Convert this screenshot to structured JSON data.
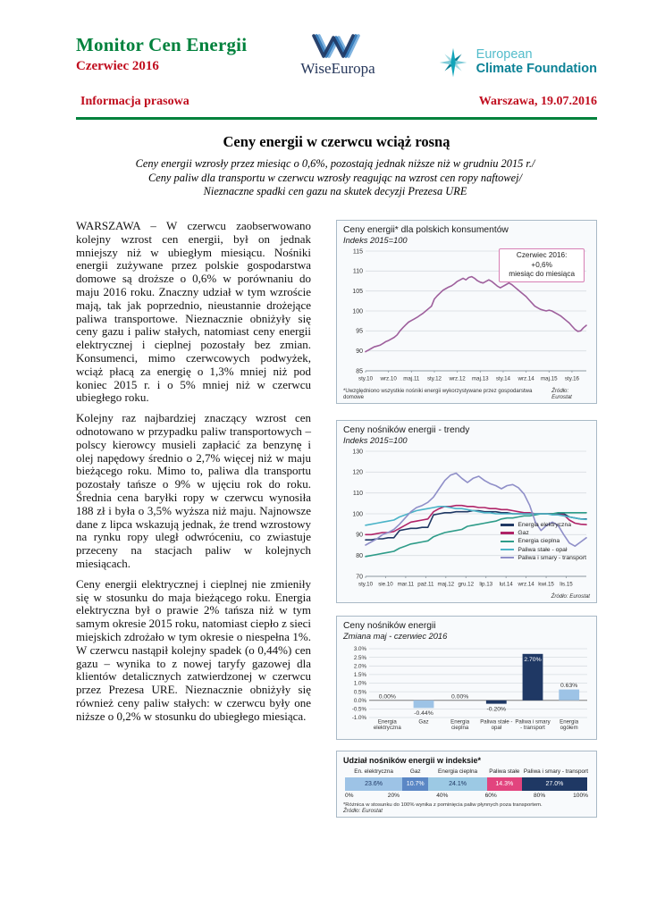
{
  "colors": {
    "brand_green": "#00813C",
    "brand_red": "#C00D1E",
    "navy": "#1F3864",
    "light_blue": "#9DC3E6",
    "pink_callout_border": "#D77FB4",
    "ecf_teal_light": "#53BCCB",
    "ecf_teal_dark": "#0C8296"
  },
  "header": {
    "title": "Monitor Cen Energii",
    "subtitle": "Czerwiec 2016",
    "wise_logo_text": "WiseEuropa",
    "ecf_logo_line1": "European",
    "ecf_logo_line2": "Climate Foundation",
    "press_label": "Informacja prasowa",
    "dateline": "Warszawa, 19.07.2016"
  },
  "article": {
    "title": "Ceny energii w czerwcu wciąż rosną",
    "lead_lines": [
      "Ceny energii wzrosły przez miesiąc o 0,6%, pozostają jednak niższe niż w grudniu 2015 r./",
      "Ceny paliw dla transportu w czerwcu wzrosły reagując na wzrost cen ropy naftowej/",
      "Nieznaczne spadki cen gazu na skutek decyzji Prezesa URE"
    ],
    "paragraphs": [
      "WARSZAWA – W czerwcu zaobserwowano kolejny wzrost cen energii, był on jednak mniejszy niż w ubiegłym miesiącu. Nośniki energii zużywane przez polskie gospodarstwa domowe są droższe o 0,6% w porównaniu do maju 2016 roku. Znaczny udział w tym wzroście mają, tak jak poprzednio, nieustannie drożejące paliwa transportowe. Nieznacznie obniżyły się ceny gazu i paliw stałych, natomiast ceny energii elektrycznej i cieplnej pozostały bez zmian. Konsumenci, mimo czerwcowych podwyżek, wciąż płacą za energię o 1,3% mniej niż pod koniec 2015 r. i o 5% mniej niż w czerwcu ubiegłego roku.",
      "Kolejny raz najbardziej znaczący wzrost cen odnotowano w przypadku paliw transportowych – polscy kierowcy musieli zapłacić za benzynę i olej napędowy średnio o 2,7% więcej niż w maju bieżącego roku. Mimo to, paliwa dla transportu pozostały tańsze o 9% w ujęciu rok do roku. Średnia cena baryłki ropy w czerwcu wynosiła 188 zł i była o 3,5% wyższa niż maju. Najnowsze dane z lipca wskazują jednak, że trend wzrostowy na rynku ropy uległ odwróceniu, co zwiastuje przeceny na stacjach paliw w kolejnych miesiącach.",
      "Ceny energii elektrycznej i cieplnej nie zmieniły się w stosunku do maja bieżącego roku. Energia elektryczna był o prawie 2% tańsza niż w tym samym okresie 2015 roku, natomiast ciepło z sieci miejskich zdrożało w tym okresie o niespełna 1%. W czerwcu nastąpił kolejny spadek (o 0,44%) cen gazu – wynika to z nowej taryfy gazowej dla klientów detalicznych zatwierdzonej w czerwcu przez Prezesa URE. Nieznacznie obniżyły się również ceny paliw stałych: w czerwcu były one niższe o 0,2% w stosunku do ubiegłego miesiąca."
    ]
  },
  "chart_data": [
    {
      "id": "energy-price-index",
      "type": "line",
      "title": "Ceny energii* dla polskich konsumentów",
      "subtitle": "Indeks 2015=100",
      "ylim": [
        85,
        115
      ],
      "ystep": 5,
      "tick_span": 0.935,
      "x_tick_labels": [
        "sty.10",
        "wrz.10",
        "maj.11",
        "sty.12",
        "wrz.12",
        "maj.13",
        "sty.14",
        "wrz.14",
        "maj.15",
        "sty.16"
      ],
      "series": [
        {
          "name": "Ceny energii dla konsumentów",
          "color": "#9E5F9C",
          "values": [
            89.8,
            90.2,
            90.6,
            91,
            91.2,
            91.4,
            91.8,
            92.3,
            92.6,
            93,
            93.4,
            94,
            95,
            95.8,
            96.5,
            97.2,
            97.6,
            98,
            98.4,
            98.9,
            99.4,
            100,
            100.6,
            101.2,
            103,
            103.8,
            104.5,
            105.2,
            105.6,
            106,
            106.3,
            106.8,
            107.4,
            107.8,
            108.2,
            107.8,
            108.4,
            108.6,
            108.2,
            107.6,
            107.2,
            107,
            107.4,
            107.8,
            107.4,
            106.8,
            106.2,
            105.8,
            106.2,
            106.6,
            107,
            106.6,
            106,
            105.4,
            104.8,
            104.2,
            103.6,
            102.8,
            102,
            101.2,
            100.8,
            100.4,
            100.2,
            100,
            100.2,
            100,
            99.6,
            99.2,
            98.8,
            98.2,
            97.6,
            97,
            96.2,
            95.4,
            94.9,
            95,
            95.8,
            96.4
          ]
        }
      ],
      "annotation": {
        "lines": [
          "Czerwiec 2016:",
          "+0,6%",
          "miesiąc do miesiąca"
        ]
      },
      "footnote": "*Uwzględniono wszystkie nośniki energii wykorzystywane przez gospodarstwa domowe",
      "source": "Źródło: Eurostat"
    },
    {
      "id": "energy-carriers-trends",
      "type": "line",
      "title": "Ceny nośników energii - trendy",
      "subtitle": "Indeks 2015=100",
      "ylim": [
        70,
        130
      ],
      "ystep": 10,
      "tick_span": 0.909,
      "x_tick_labels": [
        "sty.10",
        "sie.10",
        "mar.11",
        "paź.11",
        "maj.12",
        "gru.12",
        "lip.13",
        "lut.14",
        "wrz.14",
        "kwi.15",
        "lis.15"
      ],
      "legend_position": "right-middle",
      "series": [
        {
          "name": "Energia elektryczna",
          "color": "#1F3864",
          "values": [
            87.5,
            87.5,
            88,
            88,
            88.5,
            88.5,
            92,
            92.5,
            93,
            93,
            93.5,
            93.5,
            99.5,
            100,
            100.5,
            100.5,
            101,
            101,
            101,
            101.5,
            101.5,
            101,
            101,
            101,
            100.5,
            100.5,
            100,
            100,
            100,
            100,
            100,
            100,
            100,
            100,
            100,
            100,
            98.5,
            98,
            97.5,
            97.5
          ]
        },
        {
          "name": "Gaz",
          "color": "#B02468",
          "values": [
            90,
            90,
            90.5,
            91,
            91,
            91.5,
            93,
            94.5,
            96,
            96.5,
            97,
            97.5,
            101,
            102.5,
            103.5,
            103.5,
            104,
            104,
            103.5,
            103.5,
            103,
            103,
            102.5,
            102.5,
            102,
            102,
            101.5,
            101,
            100.5,
            100.5,
            100,
            100,
            100,
            100,
            99.5,
            99.5,
            97,
            95.5,
            95,
            94.8
          ]
        },
        {
          "name": "Energia cieplna",
          "color": "#2E9C89",
          "values": [
            79.5,
            80,
            80.5,
            81,
            81.5,
            82,
            83.5,
            84.5,
            85.5,
            86,
            86.5,
            87,
            89,
            90,
            91,
            91.5,
            92,
            92.5,
            94,
            94.5,
            95,
            95.5,
            96,
            96.5,
            97.5,
            98,
            98,
            98.5,
            99,
            99,
            99.5,
            100,
            100,
            100,
            100.5,
            100.5,
            100.5,
            100.5,
            100.5,
            100.5
          ]
        },
        {
          "name": "Paliwa stałe - opał",
          "color": "#4BB4C8",
          "values": [
            94.5,
            95,
            95.5,
            96,
            96.5,
            97,
            98.5,
            99.5,
            100.5,
            101.5,
            102,
            102.5,
            103,
            103.5,
            103.5,
            103,
            102.5,
            102.5,
            102,
            101.5,
            101,
            100.5,
            100.5,
            100,
            100,
            100,
            100,
            100,
            100,
            100,
            100,
            100,
            100,
            99.5,
            99.5,
            99,
            98.5,
            98,
            97.5,
            97.3
          ]
        },
        {
          "name": "Paliwa i smary - transport",
          "color": "#8F8FC8",
          "values": [
            85,
            86.5,
            88,
            90,
            91,
            92.5,
            95,
            98,
            101,
            103,
            104,
            105.5,
            108,
            112,
            116,
            118.5,
            119.5,
            117,
            115,
            117,
            118,
            116,
            114.5,
            113.5,
            112,
            113.5,
            114,
            112.5,
            109.5,
            104,
            96,
            92,
            94.5,
            96,
            94.5,
            90,
            86,
            84.5,
            86.5,
            88.5
          ]
        }
      ],
      "source": "Źródło: Eurostat"
    },
    {
      "id": "monthly-change",
      "type": "bar",
      "title": "Ceny nośników energii",
      "subtitle": "Zmiana maj - czerwiec 2016",
      "ylim": [
        -1.0,
        3.0
      ],
      "ystep": 0.5,
      "y_format": "percent1",
      "categories": [
        [
          "Energia",
          "elektryczna"
        ],
        [
          "Gaz"
        ],
        [
          "Energia",
          "cieplna"
        ],
        [
          "Paliwa stałe -",
          "opał"
        ],
        [
          "Paliwa i smary",
          "- transport"
        ],
        [
          "Energia",
          "ogółem"
        ]
      ],
      "values": [
        0.0,
        -0.44,
        0.0,
        -0.2,
        2.7,
        0.63
      ],
      "labels": [
        "0.00%",
        "-0.44%",
        "0.00%",
        "-0.20%",
        "2.70%",
        "0.63%"
      ],
      "bar_colors": [
        "#9DC3E6",
        "#9DC3E6",
        "#9DC3E6",
        "#1F3864",
        "#1F3864",
        "#9DC3E6"
      ]
    },
    {
      "id": "index-weights",
      "type": "stacked-bar",
      "title": "Udział nośników energii w indeksie*",
      "segments": [
        {
          "label": "En. elektryczna",
          "value": 23.6,
          "text": "23.6%",
          "color": "#9DC3E6",
          "text_color": "#1F3864"
        },
        {
          "label": "Gaz",
          "value": 10.7,
          "text": "10.7%",
          "color": "#5B87C5",
          "text_color": "#ffffff"
        },
        {
          "label": "Energia cieplna",
          "value": 24.1,
          "text": "24.1%",
          "color": "#9CC9E4",
          "text_color": "#1F3864"
        },
        {
          "label": "Paliwa stałe",
          "value": 14.3,
          "text": "14.3%",
          "color": "#E2447E",
          "text_color": "#ffffff"
        },
        {
          "label": "Paliwa i smary - transport",
          "value": 27.0,
          "text": "27.0%",
          "color": "#1F3864",
          "text_color": "#ffffff"
        }
      ],
      "axis_ticks": [
        "0%",
        "20%",
        "40%",
        "60%",
        "80%",
        "100%"
      ],
      "footnote": "*Różnica w stosunku do 100% wynika z pominięcia paliw płynnych poza transportem.",
      "source": "Źródło: Eurostat"
    }
  ]
}
